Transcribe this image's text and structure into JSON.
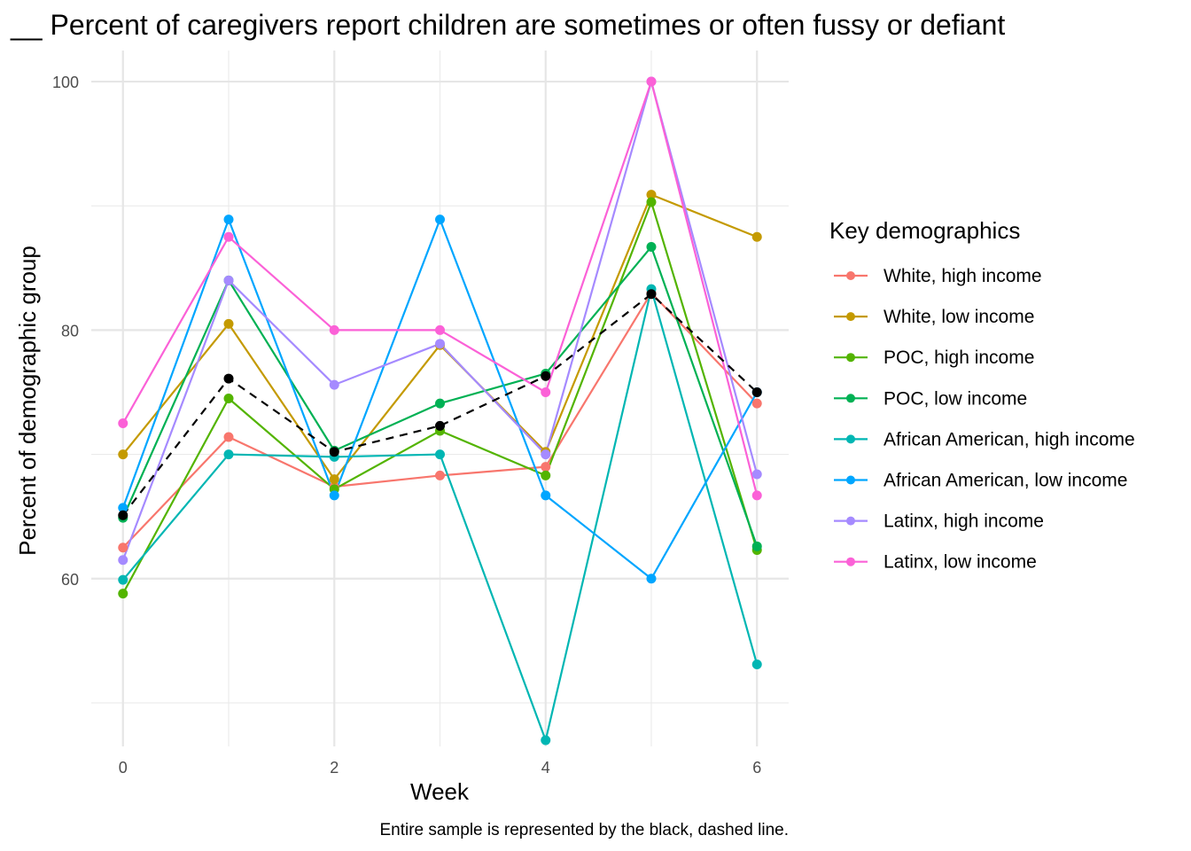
{
  "chart_data": {
    "type": "line",
    "title": "__ Percent of caregivers report children are sometimes or often fussy or defiant",
    "xlabel": "Week",
    "ylabel": "Percent of demographic group",
    "caption": "Entire sample is represented by the black, dashed line.",
    "x": [
      0,
      1,
      2,
      3,
      4,
      5,
      6
    ],
    "xlim": [
      -0.3,
      6.3
    ],
    "ylim": [
      46.5,
      102.5
    ],
    "x_ticks": [
      0,
      2,
      4,
      6
    ],
    "x_minor": [
      1,
      3,
      5
    ],
    "y_ticks": [
      60,
      80,
      100
    ],
    "y_minor": [
      50,
      70,
      90
    ],
    "grid": true,
    "legend": {
      "title": "Key demographics",
      "position": "right"
    },
    "series": [
      {
        "name": "White, high income",
        "color": "#F8766D",
        "values": [
          62.5,
          71.4,
          67.4,
          68.3,
          69.0,
          83.0,
          74.1
        ]
      },
      {
        "name": "White, low income",
        "color": "#C49A00",
        "values": [
          70.0,
          80.5,
          68.0,
          78.8,
          70.2,
          90.9,
          87.5
        ]
      },
      {
        "name": "POC, high income",
        "color": "#53B400",
        "values": [
          58.8,
          74.5,
          67.2,
          71.9,
          68.3,
          90.3,
          62.3
        ]
      },
      {
        "name": "POC, low income",
        "color": "#00B154",
        "values": [
          64.9,
          84.0,
          70.3,
          74.1,
          76.5,
          86.7,
          62.6
        ]
      },
      {
        "name": "African American, high income",
        "color": "#00B6B3",
        "values": [
          59.9,
          70.0,
          69.8,
          70.0,
          47.0,
          83.3,
          53.1
        ]
      },
      {
        "name": "African American, low income",
        "color": "#00A6FF",
        "values": [
          65.7,
          88.9,
          66.7,
          88.9,
          66.7,
          60.0,
          75.0
        ]
      },
      {
        "name": "Latinx, high income",
        "color": "#A58AFF",
        "values": [
          61.5,
          84.0,
          75.6,
          78.9,
          70.0,
          100.0,
          68.4
        ]
      },
      {
        "name": "Latinx, low income",
        "color": "#FB61D7",
        "values": [
          72.5,
          87.5,
          80.0,
          80.0,
          75.0,
          100.0,
          66.7
        ]
      }
    ],
    "overall": {
      "color": "#000000",
      "dashed": true,
      "values": [
        65.1,
        76.1,
        70.2,
        72.3,
        76.3,
        82.9,
        75.0
      ]
    }
  }
}
